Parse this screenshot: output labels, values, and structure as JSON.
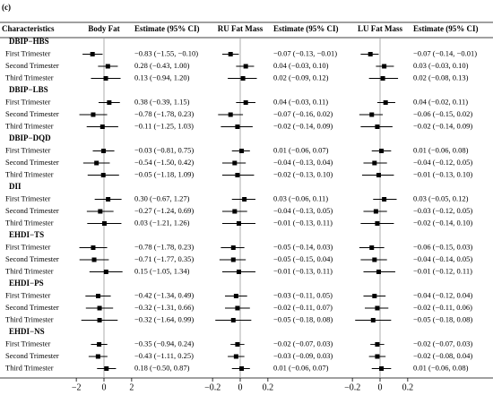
{
  "panel_label": "(c)",
  "table": {
    "header": "Characteristics",
    "groups": [
      {
        "name": "DBIP−HBS",
        "rows": [
          "First Trimester",
          "Second Trimester",
          "Third Trimester"
        ]
      },
      {
        "name": "DBIP−LBS",
        "rows": [
          "First Trimester",
          "Second Trimester",
          "Third Trimester"
        ]
      },
      {
        "name": "DBIP−DQD",
        "rows": [
          "First Trimester",
          "Second Trimester",
          "Third Trimester"
        ]
      },
      {
        "name": "DII",
        "rows": [
          "First Trimester",
          "Second Trimester",
          "Third Trimester"
        ]
      },
      {
        "name": "EHDI−TS",
        "rows": [
          "First Trimester",
          "Second Trimester",
          "Third Trimester"
        ]
      },
      {
        "name": "EHDI−PS",
        "rows": [
          "First Trimester",
          "Second Trimester",
          "Third Trimester"
        ]
      },
      {
        "name": "EHDI−NS",
        "rows": [
          "First Trimester",
          "Second Trimester",
          "Third Trimester"
        ]
      }
    ]
  },
  "chart_data": [
    {
      "type": "forest",
      "title": "Body Fat",
      "value_header": "Estimate (95% CI)",
      "color": "#000000",
      "xlim": [
        -3.5,
        3.5
      ],
      "xticks": [
        {
          "value": -2,
          "label": "−2"
        },
        0,
        2
      ],
      "values": [
        -0.83,
        0.28,
        0.13,
        0.38,
        -0.78,
        -0.11,
        -0.03,
        -0.54,
        -0.05,
        0.3,
        -0.27,
        0.03,
        -0.78,
        -0.71,
        0.15,
        -0.42,
        -0.32,
        -0.32,
        -0.35,
        -0.43,
        0.18
      ],
      "lower": [
        -1.55,
        -0.43,
        -0.94,
        -0.39,
        -1.78,
        -1.25,
        -0.81,
        -1.5,
        -1.18,
        -0.67,
        -1.24,
        -1.21,
        -1.78,
        -1.77,
        -1.05,
        -1.34,
        -1.31,
        -1.64,
        -0.94,
        -1.11,
        -0.5
      ],
      "upper": [
        -0.1,
        1.0,
        1.2,
        1.15,
        0.23,
        1.03,
        0.75,
        0.42,
        1.09,
        1.27,
        0.69,
        1.26,
        0.23,
        0.35,
        1.34,
        0.49,
        0.66,
        0.99,
        0.24,
        0.25,
        0.87
      ],
      "value_labels": [
        "−0.83 (−1.55, −0.10)",
        "0.28 (−0.43, 1.00)",
        "0.13 (−0.94, 1.20)",
        "0.38 (−0.39, 1.15)",
        "−0.78 (−1.78, 0.23)",
        "−0.11 (−1.25, 1.03)",
        "−0.03 (−0.81, 0.75)",
        "−0.54 (−1.50, 0.42)",
        "−0.05 (−1.18, 1.09)",
        "0.30 (−0.67, 1.27)",
        "−0.27 (−1.24, 0.69)",
        "0.03 (−1.21, 1.26)",
        "−0.78 (−1.78, 0.23)",
        "−0.71 (−1.77, 0.35)",
        "0.15 (−1.05, 1.34)",
        "−0.42 (−1.34, 0.49)",
        "−0.32 (−1.31, 0.66)",
        "−0.32 (−1.64, 0.99)",
        "−0.35 (−0.94, 0.24)",
        "−0.43 (−1.11, 0.25)",
        "0.18 (−0.50, 0.87)"
      ]
    },
    {
      "type": "forest",
      "title": "RU Fat Mass",
      "value_header": "Estimate (95% CI)",
      "color": "#000000",
      "xlim": [
        -0.35,
        0.35
      ],
      "xticks": [
        {
          "value": -0.2,
          "label": "−0.2"
        },
        0,
        0.2
      ],
      "values": [
        -0.07,
        0.04,
        0.02,
        0.04,
        -0.07,
        -0.02,
        0.01,
        -0.04,
        -0.02,
        0.03,
        -0.04,
        -0.01,
        -0.05,
        -0.05,
        -0.01,
        -0.03,
        -0.02,
        -0.05,
        -0.02,
        -0.03,
        0.01
      ],
      "lower": [
        -0.13,
        -0.03,
        -0.09,
        -0.03,
        -0.16,
        -0.14,
        -0.06,
        -0.13,
        -0.13,
        -0.06,
        -0.13,
        -0.13,
        -0.14,
        -0.15,
        -0.13,
        -0.11,
        -0.11,
        -0.18,
        -0.07,
        -0.09,
        -0.06
      ],
      "upper": [
        -0.01,
        0.1,
        0.12,
        0.11,
        0.02,
        0.09,
        0.07,
        0.04,
        0.1,
        0.11,
        0.05,
        0.11,
        0.03,
        0.04,
        0.11,
        0.05,
        0.07,
        0.08,
        0.03,
        0.03,
        0.07
      ],
      "value_labels": [
        "−0.07 (−0.13, −0.01)",
        "0.04 (−0.03, 0.10)",
        "0.02 (−0.09, 0.12)",
        "0.04 (−0.03, 0.11)",
        "−0.07 (−0.16, 0.02)",
        "−0.02 (−0.14, 0.09)",
        "0.01 (−0.06, 0.07)",
        "−0.04 (−0.13, 0.04)",
        "−0.02 (−0.13, 0.10)",
        "0.03 (−0.06, 0.11)",
        "−0.04 (−0.13, 0.05)",
        "−0.01 (−0.13, 0.11)",
        "−0.05 (−0.14, 0.03)",
        "−0.05 (−0.15, 0.04)",
        "−0.01 (−0.13, 0.11)",
        "−0.03 (−0.11, 0.05)",
        "−0.02 (−0.11, 0.07)",
        "−0.05 (−0.18, 0.08)",
        "−0.02 (−0.07, 0.03)",
        "−0.03 (−0.09, 0.03)",
        "0.01 (−0.06, 0.07)"
      ]
    },
    {
      "type": "forest",
      "title": "LU Fat Mass",
      "value_header": "Estimate (95% CI)",
      "color": "#000000",
      "xlim": [
        -0.35,
        0.35
      ],
      "xticks": [
        {
          "value": -0.2,
          "label": "−0.2"
        },
        0,
        0.2
      ],
      "values": [
        -0.07,
        0.03,
        0.02,
        0.04,
        -0.06,
        -0.02,
        0.01,
        -0.04,
        -0.01,
        0.03,
        -0.03,
        -0.02,
        -0.06,
        -0.04,
        -0.01,
        -0.04,
        -0.02,
        -0.05,
        -0.02,
        -0.02,
        0.01
      ],
      "lower": [
        -0.14,
        -0.03,
        -0.08,
        -0.02,
        -0.15,
        -0.14,
        -0.06,
        -0.12,
        -0.13,
        -0.05,
        -0.12,
        -0.14,
        -0.15,
        -0.14,
        -0.12,
        -0.12,
        -0.11,
        -0.18,
        -0.07,
        -0.08,
        -0.06
      ],
      "upper": [
        -0.01,
        0.1,
        0.13,
        0.11,
        0.02,
        0.09,
        0.08,
        0.05,
        0.1,
        0.12,
        0.05,
        0.1,
        0.03,
        0.05,
        0.11,
        0.04,
        0.06,
        0.08,
        0.03,
        0.04,
        0.08
      ],
      "value_labels": [
        "−0.07 (−0.14, −0.01)",
        "0.03 (−0.03, 0.10)",
        "0.02 (−0.08, 0.13)",
        "0.04 (−0.02, 0.11)",
        "−0.06 (−0.15, 0.02)",
        "−0.02 (−0.14, 0.09)",
        "0.01 (−0.06, 0.08)",
        "−0.04 (−0.12, 0.05)",
        "−0.01 (−0.13, 0.10)",
        "0.03 (−0.05, 0.12)",
        "−0.03 (−0.12, 0.05)",
        "−0.02 (−0.14, 0.10)",
        "−0.06 (−0.15, 0.03)",
        "−0.04 (−0.14, 0.05)",
        "−0.01 (−0.12, 0.11)",
        "−0.04 (−0.12, 0.04)",
        "−0.02 (−0.11, 0.06)",
        "−0.05 (−0.18, 0.08)",
        "−0.02 (−0.07, 0.03)",
        "−0.02 (−0.08, 0.04)",
        "0.01 (−0.06, 0.08)"
      ]
    }
  ]
}
